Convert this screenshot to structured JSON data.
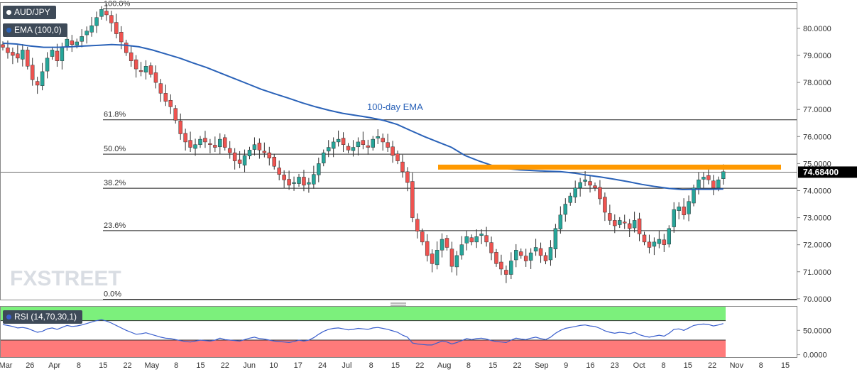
{
  "badges": {
    "symbol": "AUD/JPY",
    "ema": "EMA (100,0)",
    "rsi": "RSI (14,70,30,1)"
  },
  "watermark": "FXSTREET",
  "colors": {
    "up": "#26a69a",
    "down": "#ef5350",
    "ema_line": "#2a62b8",
    "resistance": "#ff9900",
    "rsi_upper_zone": "#7cf07c",
    "rsi_lower_zone": "#ff7a7a",
    "rsi_line": "#3a5fcd",
    "grid_line": "#222222",
    "price_tag": "#000000"
  },
  "chart_data": [
    {
      "type": "candlestick",
      "title": "AUD/JPY",
      "price_axis": [
        "80.0000",
        "79.0000",
        "78.0000",
        "77.0000",
        "76.0000",
        "75.0000",
        "74.0000",
        "73.0000",
        "72.0000",
        "71.0000",
        "70.0000"
      ],
      "ylim": [
        69.97,
        80.97
      ],
      "x_ticks": [
        "Mar",
        "26",
        "Apr",
        "8",
        "15",
        "22",
        "May",
        "8",
        "15",
        "22",
        "Jun",
        "10",
        "17",
        "24",
        "Jul",
        "8",
        "15",
        "22",
        "Aug",
        "8",
        "15",
        "22",
        "Sep",
        "9",
        "16",
        "23",
        "Oct",
        "8",
        "15",
        "22",
        "Nov",
        "8",
        "15"
      ],
      "last_price": "74.68400",
      "last_price_value": 74.684,
      "fib_levels": [
        {
          "label": "100.0%",
          "value": 80.72
        },
        {
          "label": "61.8%",
          "value": 76.62
        },
        {
          "label": "50.0%",
          "value": 75.35
        },
        {
          "label": "38.2%",
          "value": 74.09
        },
        {
          "label": "23.6%",
          "value": 72.52
        },
        {
          "label": "0.0%",
          "value": 69.98
        }
      ],
      "ema_label": "100-day EMA",
      "resistance_level": 74.87,
      "close_series": [
        79.3,
        79.1,
        79.0,
        78.9,
        79.2,
        78.6,
        78.1,
        77.9,
        78.4,
        78.9,
        79.2,
        78.8,
        79.3,
        79.6,
        79.4,
        79.5,
        79.7,
        79.9,
        80.1,
        80.4,
        80.7,
        80.5,
        80.2,
        79.8,
        79.5,
        79.1,
        78.8,
        78.5,
        78.4,
        78.6,
        78.3,
        78.0,
        77.6,
        77.3,
        77.1,
        76.6,
        76.1,
        75.8,
        75.6,
        75.7,
        75.9,
        75.8,
        75.7,
        75.6,
        75.9,
        75.6,
        75.4,
        75.1,
        75.0,
        75.3,
        75.5,
        75.7,
        75.5,
        75.4,
        75.2,
        74.9,
        74.6,
        74.4,
        74.2,
        74.3,
        74.5,
        74.2,
        74.3,
        74.6,
        75.0,
        75.4,
        75.6,
        75.8,
        75.9,
        75.7,
        75.5,
        75.6,
        75.8,
        75.7,
        75.6,
        75.9,
        76.0,
        75.8,
        75.6,
        75.3,
        75.1,
        74.7,
        74.3,
        73.0,
        72.5,
        72.1,
        71.6,
        71.3,
        71.8,
        72.2,
        71.9,
        71.2,
        71.6,
        72.0,
        72.3,
        72.1,
        72.3,
        72.4,
        72.1,
        71.7,
        71.3,
        71.1,
        70.9,
        71.4,
        71.8,
        71.6,
        71.4,
        71.7,
        71.9,
        71.6,
        71.4,
        71.9,
        72.6,
        73.1,
        73.5,
        73.8,
        74.1,
        74.3,
        74.4,
        74.2,
        74.1,
        73.7,
        73.2,
        72.9,
        72.7,
        72.9,
        72.8,
        72.6,
        72.9,
        72.4,
        72.1,
        71.9,
        72.1,
        72.2,
        72.0,
        72.6,
        73.3,
        73.4,
        73.1,
        73.6,
        74.1,
        74.4,
        74.5,
        74.4,
        74.1,
        74.4,
        74.7
      ],
      "ema_series": [
        79.45,
        79.42,
        79.35,
        79.3,
        79.3,
        79.32,
        79.35,
        79.37,
        79.4,
        79.38,
        79.32,
        79.2,
        79.05,
        78.9,
        78.72,
        78.55,
        78.35,
        78.15,
        77.95,
        77.75,
        77.58,
        77.42,
        77.25,
        77.1,
        76.97,
        76.86,
        76.78,
        76.7,
        76.6,
        76.45,
        76.22,
        76.0,
        75.8,
        75.6,
        75.3,
        75.1,
        74.93,
        74.82,
        74.77,
        74.74,
        74.72,
        74.7,
        74.65,
        74.57,
        74.5,
        74.42,
        74.33,
        74.23,
        74.15,
        74.08,
        74.04,
        74.05,
        74.05,
        74.06
      ],
      "rsi_panel": {
        "title": "RSI (14,70,30,1)",
        "axis": [
          "50.0000",
          "0.0000"
        ],
        "ylim": [
          -5,
          100
        ],
        "overbought": 70,
        "oversold": 30,
        "series": [
          62,
          60,
          58,
          55,
          56,
          54,
          50,
          46,
          48,
          53,
          55,
          52,
          56,
          60,
          58,
          59,
          61,
          64,
          67,
          70,
          72,
          69,
          65,
          60,
          55,
          50,
          46,
          42,
          43,
          45,
          42,
          39,
          36,
          34,
          33,
          31,
          29,
          27,
          26,
          28,
          30,
          29,
          28,
          30,
          34,
          31,
          30,
          29,
          28,
          31,
          34,
          36,
          33,
          32,
          30,
          28,
          27,
          26,
          25,
          27,
          30,
          28,
          30,
          35,
          42,
          48,
          52,
          54,
          55,
          53,
          51,
          52,
          54,
          53,
          52,
          55,
          56,
          54,
          52,
          49,
          46,
          40,
          36,
          24,
          22,
          21,
          20,
          20,
          24,
          28,
          26,
          22,
          25,
          29,
          33,
          31,
          33,
          34,
          32,
          29,
          27,
          26,
          25,
          30,
          34,
          32,
          31,
          34,
          36,
          33,
          31,
          36,
          44,
          50,
          54,
          56,
          58,
          60,
          61,
          59,
          58,
          54,
          49,
          46,
          44,
          46,
          45,
          43,
          46,
          41,
          38,
          36,
          38,
          40,
          38,
          44,
          52,
          53,
          50,
          55,
          60,
          62,
          63,
          62,
          59,
          61,
          64
        ]
      }
    }
  ]
}
